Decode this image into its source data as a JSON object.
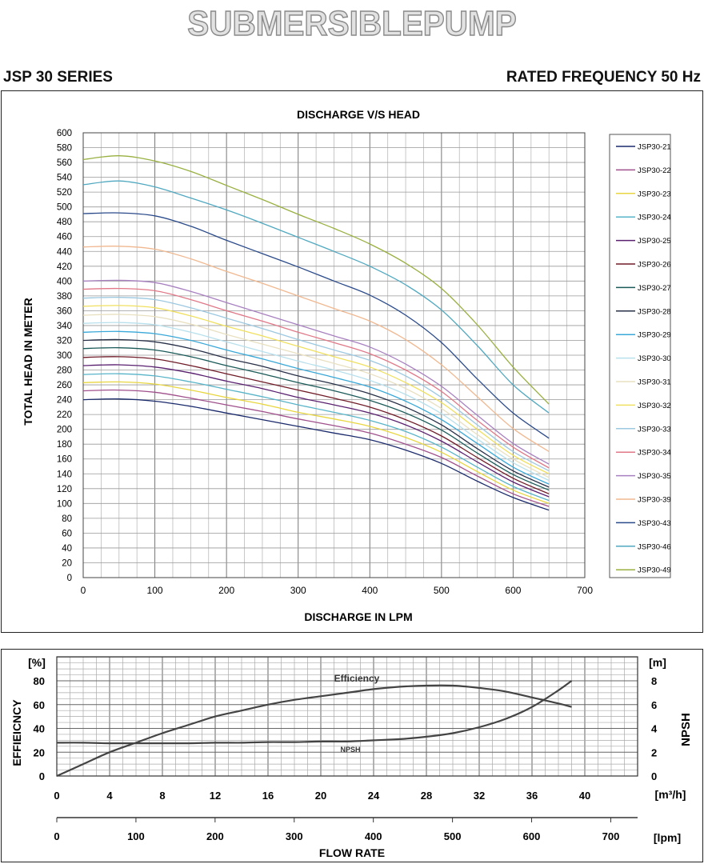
{
  "banner": {
    "text": "SUBMERSIBLEPUMP"
  },
  "header": {
    "series": "JSP 30 SERIES",
    "frequency": "RATED FREQUENCY 50 Hz"
  },
  "chart_data": [
    {
      "type": "line",
      "title": "DISCHARGE V/S HEAD",
      "xlabel": "DISCHARGE IN LPM",
      "ylabel": "TOTAL HEAD IN METER",
      "xlim": [
        0,
        700
      ],
      "ylim": [
        0,
        600
      ],
      "xticks": [
        0,
        100,
        200,
        300,
        400,
        500,
        600,
        700
      ],
      "yticks": [
        0,
        20,
        40,
        60,
        80,
        100,
        120,
        140,
        160,
        180,
        200,
        220,
        240,
        260,
        280,
        300,
        320,
        340,
        360,
        380,
        400,
        420,
        440,
        460,
        480,
        500,
        520,
        540,
        560,
        580,
        600
      ],
      "grid": true,
      "legend_position": "right",
      "x": [
        0,
        50,
        100,
        150,
        200,
        250,
        300,
        350,
        400,
        450,
        500,
        550,
        600,
        650
      ],
      "series": [
        {
          "name": "JSP30-21",
          "color": "#1a2a6c",
          "values": [
            240,
            241,
            238,
            231,
            222,
            213,
            204,
            195,
            186,
            172,
            154,
            130,
            108,
            91
          ]
        },
        {
          "name": "JSP30-22",
          "color": "#a0508c",
          "values": [
            252,
            253,
            250,
            242,
            233,
            224,
            214,
            205,
            195,
            180,
            162,
            137,
            113,
            96
          ]
        },
        {
          "name": "JSP30-23",
          "color": "#e8d640",
          "values": [
            263,
            264,
            261,
            253,
            243,
            234,
            223,
            214,
            204,
            189,
            169,
            143,
            118,
            100
          ]
        },
        {
          "name": "JSP30-24",
          "color": "#58b4c8",
          "values": [
            274,
            275,
            272,
            264,
            254,
            244,
            233,
            223,
            212,
            197,
            176,
            149,
            123,
            104
          ]
        },
        {
          "name": "JSP30-25",
          "color": "#5a2070",
          "values": [
            286,
            287,
            284,
            276,
            265,
            255,
            243,
            233,
            222,
            206,
            184,
            156,
            129,
            109
          ]
        },
        {
          "name": "JSP30-26",
          "color": "#701c28",
          "values": [
            297,
            298,
            295,
            286,
            275,
            264,
            253,
            242,
            230,
            213,
            191,
            162,
            134,
            113
          ]
        },
        {
          "name": "JSP30-27",
          "color": "#1a5a58",
          "values": [
            309,
            310,
            307,
            298,
            286,
            275,
            263,
            252,
            239,
            222,
            199,
            168,
            139,
            118
          ]
        },
        {
          "name": "JSP30-28",
          "color": "#283048",
          "values": [
            320,
            321,
            318,
            309,
            296,
            285,
            272,
            261,
            248,
            230,
            206,
            174,
            144,
            122
          ]
        },
        {
          "name": "JSP30-29",
          "color": "#3aa8d8",
          "values": [
            331,
            332,
            329,
            320,
            307,
            295,
            282,
            270,
            257,
            238,
            213,
            181,
            149,
            126
          ]
        },
        {
          "name": "JSP30-30",
          "color": "#b8e0ec",
          "values": [
            343,
            344,
            341,
            331,
            318,
            305,
            292,
            280,
            266,
            247,
            221,
            187,
            155,
            131
          ]
        },
        {
          "name": "JSP30-31",
          "color": "#e8e0c0",
          "values": [
            354,
            355,
            352,
            342,
            328,
            315,
            302,
            289,
            275,
            255,
            228,
            193,
            160,
            135
          ]
        },
        {
          "name": "JSP30-32",
          "color": "#f0e060",
          "values": [
            366,
            367,
            364,
            353,
            339,
            326,
            312,
            298,
            284,
            263,
            236,
            200,
            165,
            140
          ]
        },
        {
          "name": "JSP30-33",
          "color": "#9cc8e0",
          "values": [
            377,
            378,
            375,
            364,
            350,
            336,
            321,
            307,
            293,
            272,
            243,
            206,
            170,
            144
          ]
        },
        {
          "name": "JSP30-34",
          "color": "#e07888",
          "values": [
            389,
            390,
            387,
            375,
            360,
            346,
            331,
            317,
            302,
            280,
            251,
            212,
            176,
            148
          ]
        },
        {
          "name": "JSP30-35",
          "color": "#a880c0",
          "values": [
            400,
            401,
            398,
            386,
            371,
            356,
            341,
            326,
            311,
            288,
            258,
            219,
            181,
            153
          ]
        },
        {
          "name": "JSP30-39",
          "color": "#f0b890",
          "values": [
            446,
            447,
            443,
            430,
            413,
            397,
            380,
            363,
            346,
            321,
            287,
            244,
            201,
            170
          ]
        },
        {
          "name": "JSP30-43",
          "color": "#2a4a8a",
          "values": [
            491,
            492,
            488,
            474,
            455,
            437,
            419,
            400,
            381,
            354,
            317,
            268,
            222,
            188
          ]
        },
        {
          "name": "JSP30-46",
          "color": "#50a8c0",
          "values": [
            530,
            535,
            527,
            512,
            496,
            478,
            459,
            440,
            420,
            395,
            361,
            313,
            260,
            222
          ]
        },
        {
          "name": "JSP30-49",
          "color": "#98b040",
          "values": [
            564,
            569,
            562,
            548,
            529,
            510,
            490,
            471,
            450,
            424,
            390,
            341,
            284,
            234
          ]
        }
      ]
    },
    {
      "type": "line",
      "title": "",
      "xlabel": "FLOW RATE",
      "ylabel_left": "EFFIEICNCY",
      "ylabel_right": "NPSH",
      "x_unit": "[m³/h]",
      "x2_unit": "[lpm]",
      "yleft_unit": "[%]",
      "yright_unit": "[m]",
      "xlim": [
        0,
        40
      ],
      "ylim_left": [
        0,
        80
      ],
      "ylim_right": [
        0,
        8
      ],
      "xticks": [
        0,
        4,
        8,
        12,
        16,
        20,
        24,
        28,
        32,
        36,
        40
      ],
      "x2ticks": [
        0,
        100,
        200,
        300,
        400,
        500,
        600,
        700
      ],
      "yticks_left": [
        0,
        20,
        40,
        60,
        80
      ],
      "yticks_right": [
        0,
        2,
        4,
        6,
        8
      ],
      "grid": true,
      "x": [
        0,
        2,
        4,
        6,
        8,
        10,
        12,
        14,
        16,
        18,
        20,
        22,
        24,
        26,
        28,
        30,
        32,
        34,
        36,
        38,
        39
      ],
      "series": [
        {
          "name": "Efficiency",
          "axis": "left",
          "color": "#444444",
          "values": [
            0,
            10,
            20,
            28,
            36,
            43,
            50,
            55,
            60,
            64,
            67,
            70,
            73,
            75,
            76,
            76,
            74,
            71,
            66,
            61,
            58
          ]
        },
        {
          "name": "NPSH",
          "axis": "right",
          "color": "#444444",
          "values": [
            2.8,
            2.8,
            2.75,
            2.75,
            2.75,
            2.75,
            2.8,
            2.8,
            2.85,
            2.85,
            2.9,
            2.9,
            3.0,
            3.1,
            3.3,
            3.6,
            4.1,
            4.8,
            5.8,
            7.2,
            8.0
          ]
        }
      ]
    }
  ]
}
